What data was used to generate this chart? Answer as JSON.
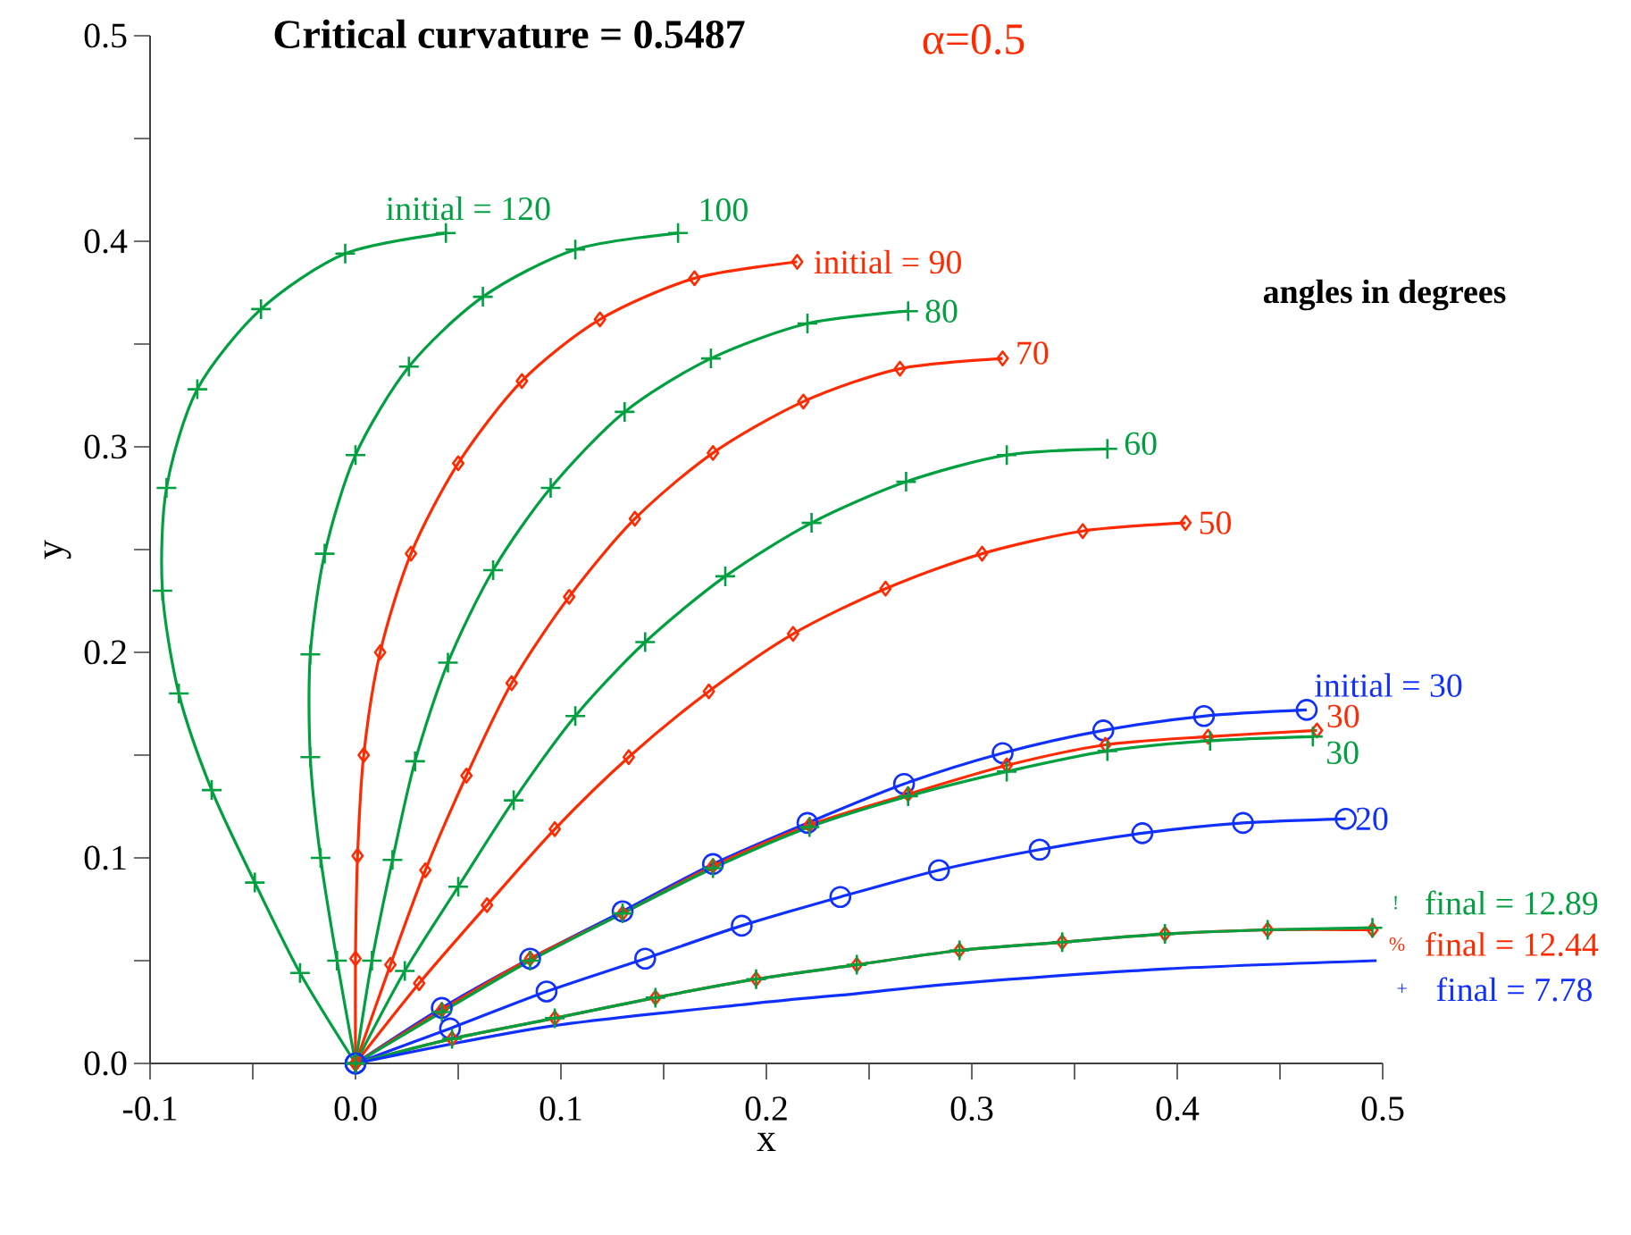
{
  "chart_data": {
    "type": "line",
    "title": "Critical curvature = 0.5487",
    "subtitle": "α=0.5",
    "xlabel": "x",
    "ylabel": "y",
    "annotations": [
      "angles in degrees",
      "!",
      "%",
      "+"
    ],
    "xlim": [
      -0.1,
      0.5
    ],
    "ylim": [
      0,
      0.5
    ],
    "xticks": [
      -0.1,
      {
        "value": -0.05,
        "label": null
      },
      {
        "value": 0,
        "label": "0.0"
      },
      {
        "value": 0.05,
        "label": null
      },
      0.1,
      {
        "value": 0.15,
        "label": null
      },
      0.2,
      {
        "value": 0.25,
        "label": null
      },
      0.3,
      {
        "value": 0.35,
        "label": null
      },
      0.4,
      {
        "value": 0.45,
        "label": null
      },
      0.5
    ],
    "yticks": [
      {
        "value": 0,
        "label": "0.0"
      },
      {
        "value": 0.05,
        "label": null
      },
      0.1,
      {
        "value": 0.15,
        "label": null
      },
      0.2,
      {
        "value": 0.25,
        "label": null
      },
      0.3,
      {
        "value": 0.35,
        "label": null
      },
      0.4,
      {
        "value": 0.45,
        "label": null
      },
      0.5
    ],
    "series": [
      {
        "name": "initial = 120",
        "color": "#00a040",
        "marker": "cross",
        "x": [
          0,
          -0.027,
          -0.049,
          -0.07,
          -0.086,
          -0.094,
          -0.092,
          -0.077,
          -0.046,
          -0.005,
          0.044
        ],
        "values": [
          0,
          0.044,
          0.088,
          0.133,
          0.18,
          0.23,
          0.28,
          0.328,
          0.367,
          0.394,
          0.404
        ]
      },
      {
        "name": "100",
        "color": "#00a040",
        "marker": "cross",
        "x": [
          0,
          -0.009,
          -0.017,
          -0.022,
          -0.022,
          -0.015,
          0.0,
          0.026,
          0.062,
          0.107,
          0.157
        ],
        "values": [
          0,
          0.05,
          0.1,
          0.149,
          0.199,
          0.248,
          0.296,
          0.339,
          0.373,
          0.396,
          0.404
        ]
      },
      {
        "name": "initial = 90",
        "color": "#ff2a00",
        "marker": "diamond",
        "x": [
          0,
          0.0,
          0.001,
          0.004,
          0.012,
          0.027,
          0.05,
          0.081,
          0.119,
          0.165,
          0.215
        ],
        "values": [
          0,
          0.051,
          0.101,
          0.15,
          0.2,
          0.248,
          0.292,
          0.332,
          0.362,
          0.382,
          0.39
        ]
      },
      {
        "name": "80",
        "color": "#00a040",
        "marker": "cross",
        "x": [
          0,
          0.008,
          0.018,
          0.029,
          0.045,
          0.067,
          0.095,
          0.131,
          0.173,
          0.22,
          0.269
        ],
        "values": [
          0,
          0.05,
          0.099,
          0.147,
          0.195,
          0.24,
          0.28,
          0.317,
          0.343,
          0.36,
          0.366
        ]
      },
      {
        "name": "70",
        "color": "#ff2a00",
        "marker": "diamond",
        "x": [
          0,
          0.017,
          0.034,
          0.054,
          0.076,
          0.104,
          0.136,
          0.174,
          0.218,
          0.265,
          0.315
        ],
        "values": [
          0,
          0.048,
          0.094,
          0.14,
          0.185,
          0.227,
          0.265,
          0.297,
          0.322,
          0.338,
          0.343
        ]
      },
      {
        "name": "60",
        "color": "#00a040",
        "marker": "cross",
        "x": [
          0,
          0.024,
          0.05,
          0.077,
          0.107,
          0.141,
          0.18,
          0.222,
          0.268,
          0.317,
          0.366
        ],
        "values": [
          0,
          0.045,
          0.086,
          0.128,
          0.169,
          0.205,
          0.237,
          0.263,
          0.283,
          0.296,
          0.299
        ]
      },
      {
        "name": "50",
        "color": "#ff2a00",
        "marker": "diamond",
        "x": [
          0,
          0.031,
          0.064,
          0.097,
          0.133,
          0.172,
          0.213,
          0.258,
          0.305,
          0.354,
          0.404
        ],
        "values": [
          0,
          0.039,
          0.077,
          0.114,
          0.149,
          0.181,
          0.209,
          0.231,
          0.248,
          0.259,
          0.263
        ]
      },
      {
        "name": "initial = 30",
        "color": "#1030ff",
        "marker": "circle",
        "x": [
          0,
          0.042,
          0.085,
          0.13,
          0.174,
          0.22,
          0.267,
          0.315,
          0.364,
          0.413,
          0.463
        ],
        "values": [
          0,
          0.027,
          0.051,
          0.074,
          0.097,
          0.117,
          0.136,
          0.151,
          0.162,
          0.169,
          0.172
        ]
      },
      {
        "name": "30",
        "color": "#ff2a00",
        "marker": "diamond",
        "x": [
          0,
          0.042,
          0.085,
          0.13,
          0.174,
          0.221,
          0.269,
          0.317,
          0.365,
          0.415,
          0.468
        ],
        "values": [
          0,
          0.026,
          0.051,
          0.073,
          0.096,
          0.116,
          0.131,
          0.145,
          0.155,
          0.159,
          0.162
        ]
      },
      {
        "name": "30",
        "color": "#00a040",
        "marker": "cross",
        "x": [
          0,
          0.042,
          0.085,
          0.13,
          0.174,
          0.221,
          0.269,
          0.317,
          0.366,
          0.416,
          0.466
        ],
        "values": [
          0,
          0.025,
          0.05,
          0.073,
          0.095,
          0.115,
          0.13,
          0.142,
          0.152,
          0.157,
          0.159
        ]
      },
      {
        "name": "20",
        "color": "#1030ff",
        "marker": "circle",
        "x": [
          0,
          0.046,
          0.093,
          0.141,
          0.188,
          0.236,
          0.284,
          0.333,
          0.383,
          0.432,
          0.482
        ],
        "values": [
          0,
          0.017,
          0.035,
          0.051,
          0.067,
          0.081,
          0.094,
          0.104,
          0.112,
          0.117,
          0.119
        ]
      },
      {
        "name": "final = 12.44",
        "color": "#ff2a00",
        "marker": "diamond",
        "x": [
          0,
          0.047,
          0.097,
          0.146,
          0.195,
          0.244,
          0.294,
          0.344,
          0.394,
          0.444,
          0.495
        ],
        "values": [
          0,
          0.012,
          0.022,
          0.032,
          0.041,
          0.048,
          0.055,
          0.059,
          0.063,
          0.065,
          0.065
        ]
      },
      {
        "name": "final = 12.89",
        "color": "#00a040",
        "marker": "cross",
        "x": [
          0,
          0.047,
          0.097,
          0.146,
          0.195,
          0.244,
          0.294,
          0.344,
          0.394,
          0.444,
          0.495
        ],
        "values": [
          0,
          0.012,
          0.022,
          0.032,
          0.041,
          0.048,
          0.055,
          0.059,
          0.063,
          0.065,
          0.066
        ]
      },
      {
        "name": "final = 7.78",
        "color": "#1030ff",
        "marker": "none",
        "x": [
          0,
          0.094,
          0.192,
          0.244,
          0.294,
          0.395,
          0.497
        ],
        "values": [
          0,
          0.018,
          0.029,
          0.034,
          0.039,
          0.046,
          0.05
        ]
      }
    ]
  }
}
